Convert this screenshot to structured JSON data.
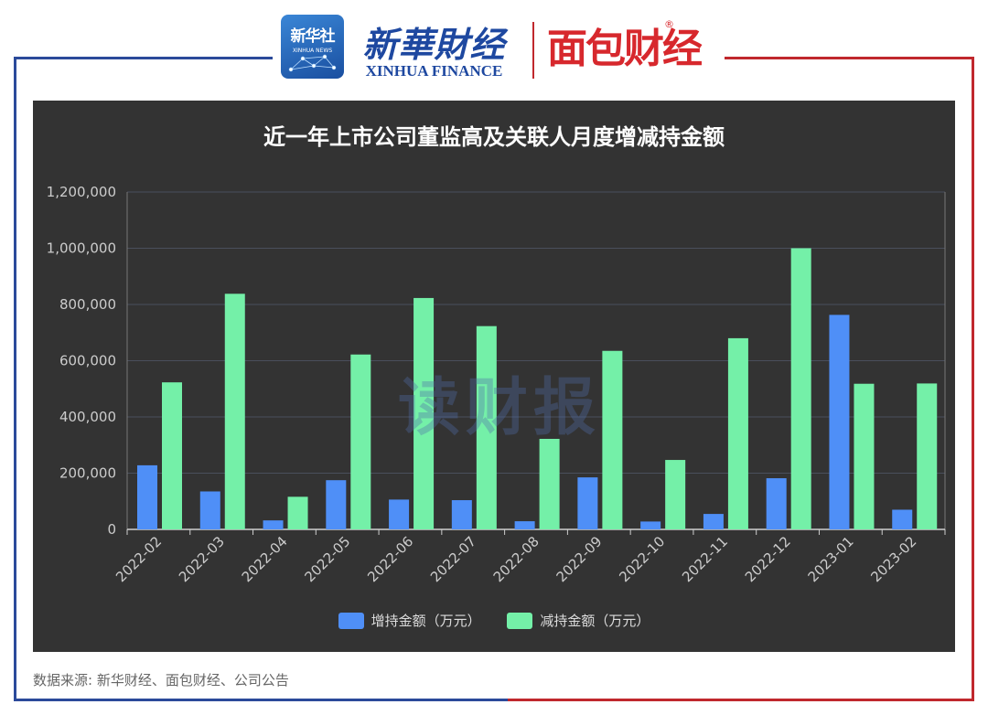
{
  "header": {
    "xinhua_news_logo_text": "新华社",
    "xinhua_news_logo_subtext": "XINHUA NEWS",
    "xinhua_finance_cn": "新華財经",
    "xinhua_finance_en": "XINHUA FINANCE",
    "mianbao_logo": "面包财经",
    "registered_mark": "®"
  },
  "watermark": "读财报",
  "source_note": "数据来源: 新华财经、面包财经、公司公告",
  "colors": {
    "background": "#333333",
    "increase": "#4f8ff7",
    "decrease": "#74f0a8",
    "grid": "#4a4f5c"
  },
  "chart_data": {
    "type": "bar",
    "title": "近一年上市公司董监高及关联人月度增减持金额",
    "categories": [
      "2022-02",
      "2022-03",
      "2022-04",
      "2022-05",
      "2022-06",
      "2022-07",
      "2022-08",
      "2022-09",
      "2022-10",
      "2022-11",
      "2022-12",
      "2023-01",
      "2023-02"
    ],
    "series": [
      {
        "name": "增持金额（万元）",
        "values": [
          228000,
          135000,
          32000,
          175000,
          106000,
          104000,
          29000,
          185000,
          28000,
          55000,
          182000,
          763000,
          70000
        ]
      },
      {
        "name": "减持金额（万元）",
        "values": [
          523000,
          838000,
          116000,
          622000,
          823000,
          723000,
          322000,
          635000,
          247000,
          680000,
          1000000,
          518000,
          519000
        ]
      }
    ],
    "ylim": [
      0,
      1200000
    ],
    "yticks": [
      "0",
      "200,000",
      "400,000",
      "600,000",
      "800,000",
      "1,000,000",
      "1,200,000"
    ],
    "grid": true,
    "legend_position": "bottom"
  }
}
